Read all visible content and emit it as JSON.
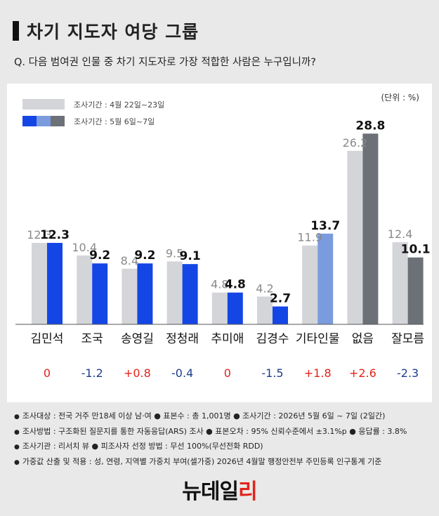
{
  "header": {
    "title": "차기 지도자 여당 그룹",
    "question": "Q. 다음 범여권 인물 중 차기 지도자로 가장 적합한 사람은 누구입니까?"
  },
  "chart_data": {
    "type": "bar",
    "unit_label": "(단위 : %)",
    "legend": {
      "previous": "조사기간 : 4월 22일~23일",
      "current": "조사기간 : 5월 6일~7일"
    },
    "categories": [
      "김민석",
      "조국",
      "송영길",
      "정청래",
      "추미애",
      "김경수",
      "기타인물",
      "없음",
      "잘모름"
    ],
    "series": [
      {
        "name": "조사기간 : 4월 22일~23일",
        "values": [
          12.3,
          10.4,
          8.4,
          9.5,
          4.8,
          4.2,
          11.9,
          26.2,
          12.4
        ]
      },
      {
        "name": "조사기간 : 5월 6일~7일",
        "values": [
          12.3,
          9.2,
          9.2,
          9.1,
          4.8,
          2.7,
          13.7,
          28.8,
          10.1
        ]
      }
    ],
    "changes": [
      "0",
      "-1.2",
      "+0.8",
      "-0.4",
      "0",
      "-1.5",
      "+1.8",
      "+2.6",
      "-2.3"
    ],
    "ylim": [
      0,
      30
    ],
    "colors": {
      "previous": "#d3d5d9",
      "current_candidate": "#1446e6",
      "current_other": "#7b9bdf",
      "current_none": "#6c7177",
      "increase": "#e2231a",
      "decrease": "#1c3e8a",
      "neutral": "#e2231a"
    }
  },
  "footer": {
    "lines": [
      "조사대상 : 전국 거주 만18세 이상 남·여  ● 표본수 : 총 1,001명  ● 조사기간 : 2026년 5월 6일 ~ 7일 (2일간)",
      "조사방법 : 구조화된 질문지를 통한 자동응답(ARS) 조사  ● 표본오차 : 95% 신뢰수준에서 ±3.1%p  ● 응답률 : 3.8%",
      "조사기관 : 리서치 뷰  ● 피조사자 선정 방법 : 무선 100%(무선전화 RDD)",
      "가중값 산출 및 적용 : 성, 연령, 지역별 가중치 부여(셀가중) 2026년 4월말 행정안전부 주민등록 인구통계 기준"
    ]
  },
  "logo": {
    "text_a": "뉴데일",
    "text_b": "리"
  }
}
